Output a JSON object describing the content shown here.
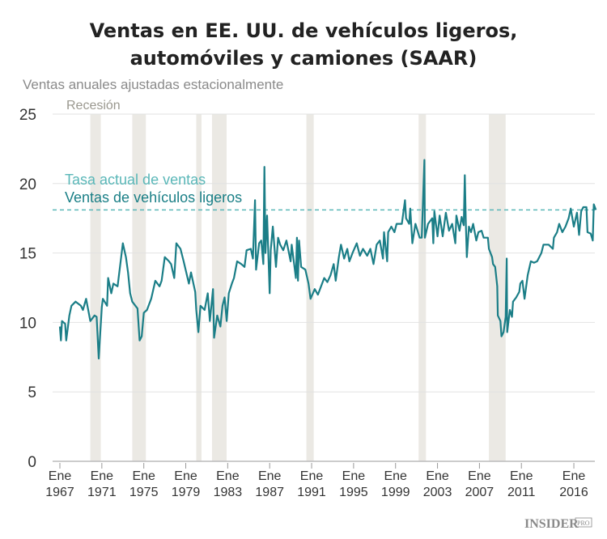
{
  "chart_data": {
    "type": "line",
    "title_line1": "Ventas en EE. UU. de vehículos ligeros,",
    "title_line2": "automóviles y camiones (SAAR)",
    "ylabel": "Ventas anuales ajustadas estacionalmente",
    "recession_label": "Recesión",
    "ylim": [
      0,
      25
    ],
    "xlim": [
      1966.8,
      2018.3
    ],
    "yticks": [
      0,
      5,
      10,
      15,
      20,
      25
    ],
    "xticks": [
      {
        "year": 1967,
        "month": "Ene",
        "label": "1967"
      },
      {
        "year": 1971,
        "month": "Ene",
        "label": "1971"
      },
      {
        "year": 1975,
        "month": "Ene",
        "label": "1975"
      },
      {
        "year": 1979,
        "month": "Ene",
        "label": "1979"
      },
      {
        "year": 1983,
        "month": "Ene",
        "label": "1983"
      },
      {
        "year": 1987,
        "month": "Ene",
        "label": "1987"
      },
      {
        "year": 1991,
        "month": "Ene",
        "label": "1991"
      },
      {
        "year": 1995,
        "month": "Ene",
        "label": "1995"
      },
      {
        "year": 1999,
        "month": "Ene",
        "label": "1999"
      },
      {
        "year": 2003,
        "month": "Ene",
        "label": "2003"
      },
      {
        "year": 2007,
        "month": "Ene",
        "label": "2007"
      },
      {
        "year": 2011,
        "month": "Ene",
        "label": "2011"
      },
      {
        "year": 2016,
        "month": "Ene",
        "label": "2016"
      }
    ],
    "grid": true,
    "recessions": [
      [
        1969.9,
        1970.9
      ],
      [
        1973.9,
        1975.2
      ],
      [
        1980.0,
        1980.5
      ],
      [
        1981.5,
        1982.9
      ],
      [
        1990.5,
        1991.2
      ],
      [
        2001.2,
        2001.9
      ],
      [
        2007.9,
        2009.5
      ]
    ],
    "current_rate": {
      "name": "Tasa actual de ventas",
      "value": 18.1,
      "color": "#5ab7b8"
    },
    "series": [
      {
        "name": "Ventas de vehículos ligeros",
        "color": "#1b7e87",
        "points": [
          [
            1967.0,
            9.7
          ],
          [
            1967.1,
            8.7
          ],
          [
            1967.2,
            10.1
          ],
          [
            1967.5,
            9.9
          ],
          [
            1967.6,
            8.7
          ],
          [
            1967.9,
            10.5
          ],
          [
            1968.1,
            11.2
          ],
          [
            1968.5,
            11.5
          ],
          [
            1969.0,
            11.2
          ],
          [
            1969.2,
            10.9
          ],
          [
            1969.5,
            11.7
          ],
          [
            1969.9,
            10.1
          ],
          [
            1970.3,
            10.5
          ],
          [
            1970.5,
            10.4
          ],
          [
            1970.7,
            7.4
          ],
          [
            1971.0,
            11.1
          ],
          [
            1971.1,
            11.7
          ],
          [
            1971.5,
            11.2
          ],
          [
            1971.6,
            13.2
          ],
          [
            1971.9,
            12.1
          ],
          [
            1972.1,
            12.8
          ],
          [
            1972.5,
            12.6
          ],
          [
            1973.0,
            15.7
          ],
          [
            1973.3,
            14.7
          ],
          [
            1973.5,
            13.6
          ],
          [
            1973.7,
            12.1
          ],
          [
            1973.9,
            11.5
          ],
          [
            1974.2,
            11.2
          ],
          [
            1974.4,
            11.0
          ],
          [
            1974.6,
            8.7
          ],
          [
            1974.8,
            9.0
          ],
          [
            1975.0,
            10.7
          ],
          [
            1975.3,
            10.9
          ],
          [
            1975.7,
            11.7
          ],
          [
            1976.1,
            13.0
          ],
          [
            1976.5,
            12.6
          ],
          [
            1976.7,
            13.0
          ],
          [
            1977.0,
            14.7
          ],
          [
            1977.4,
            14.4
          ],
          [
            1977.6,
            14.2
          ],
          [
            1977.9,
            13.2
          ],
          [
            1978.1,
            15.7
          ],
          [
            1978.5,
            15.3
          ],
          [
            1978.8,
            14.4
          ],
          [
            1979.3,
            12.8
          ],
          [
            1979.5,
            13.6
          ],
          [
            1979.9,
            12.2
          ],
          [
            1980.0,
            10.9
          ],
          [
            1980.2,
            9.3
          ],
          [
            1980.4,
            11.2
          ],
          [
            1980.8,
            10.9
          ],
          [
            1981.1,
            12.1
          ],
          [
            1981.3,
            10.1
          ],
          [
            1981.6,
            12.4
          ],
          [
            1981.7,
            8.9
          ],
          [
            1982.0,
            10.5
          ],
          [
            1982.3,
            9.7
          ],
          [
            1982.5,
            11.2
          ],
          [
            1982.7,
            11.8
          ],
          [
            1982.9,
            10.1
          ],
          [
            1983.1,
            12.1
          ],
          [
            1983.4,
            12.8
          ],
          [
            1983.6,
            13.2
          ],
          [
            1983.9,
            14.4
          ],
          [
            1984.3,
            14.2
          ],
          [
            1984.6,
            14.0
          ],
          [
            1984.8,
            15.2
          ],
          [
            1985.2,
            15.3
          ],
          [
            1985.4,
            14.6
          ],
          [
            1985.6,
            18.8
          ],
          [
            1985.7,
            13.8
          ],
          [
            1986.0,
            15.7
          ],
          [
            1986.2,
            15.9
          ],
          [
            1986.4,
            14.2
          ],
          [
            1986.5,
            21.2
          ],
          [
            1986.6,
            15.0
          ],
          [
            1986.75,
            17.7
          ],
          [
            1987.0,
            12.1
          ],
          [
            1987.1,
            15.2
          ],
          [
            1987.3,
            16.9
          ],
          [
            1987.6,
            14.0
          ],
          [
            1987.8,
            16.1
          ],
          [
            1988.0,
            15.6
          ],
          [
            1988.3,
            15.2
          ],
          [
            1988.6,
            15.9
          ],
          [
            1989.0,
            14.4
          ],
          [
            1989.1,
            15.6
          ],
          [
            1989.5,
            13.2
          ],
          [
            1989.6,
            16.1
          ],
          [
            1989.7,
            13.0
          ],
          [
            1989.8,
            15.9
          ],
          [
            1990.0,
            14.0
          ],
          [
            1990.4,
            13.8
          ],
          [
            1990.7,
            12.8
          ],
          [
            1990.9,
            11.7
          ],
          [
            1991.3,
            12.4
          ],
          [
            1991.6,
            12.0
          ],
          [
            1991.9,
            12.6
          ],
          [
            1992.2,
            13.2
          ],
          [
            1992.5,
            12.9
          ],
          [
            1992.8,
            13.4
          ],
          [
            1993.1,
            14.2
          ],
          [
            1993.3,
            13.0
          ],
          [
            1993.6,
            14.7
          ],
          [
            1993.8,
            15.6
          ],
          [
            1994.1,
            14.6
          ],
          [
            1994.4,
            15.3
          ],
          [
            1994.6,
            14.4
          ],
          [
            1994.9,
            15.0
          ],
          [
            1995.3,
            15.7
          ],
          [
            1995.6,
            14.8
          ],
          [
            1995.9,
            15.3
          ],
          [
            1996.3,
            14.8
          ],
          [
            1996.6,
            15.3
          ],
          [
            1996.9,
            14.2
          ],
          [
            1997.2,
            15.6
          ],
          [
            1997.5,
            15.9
          ],
          [
            1997.8,
            14.6
          ],
          [
            1997.9,
            16.5
          ],
          [
            1998.2,
            14.4
          ],
          [
            1998.3,
            16.5
          ],
          [
            1998.6,
            16.9
          ],
          [
            1998.9,
            16.5
          ],
          [
            1999.1,
            17.1
          ],
          [
            1999.6,
            17.1
          ],
          [
            1999.9,
            18.8
          ],
          [
            2000.0,
            17.5
          ],
          [
            2000.3,
            17.1
          ],
          [
            2000.4,
            18.2
          ],
          [
            2000.6,
            15.7
          ],
          [
            2000.9,
            17.1
          ],
          [
            2001.3,
            16.1
          ],
          [
            2001.5,
            16.1
          ],
          [
            2001.75,
            21.7
          ],
          [
            2001.8,
            16.1
          ],
          [
            2002.1,
            17.1
          ],
          [
            2002.5,
            17.5
          ],
          [
            2002.6,
            15.7
          ],
          [
            2002.7,
            18.0
          ],
          [
            2003.0,
            16.2
          ],
          [
            2003.2,
            17.7
          ],
          [
            2003.5,
            16.2
          ],
          [
            2003.8,
            17.9
          ],
          [
            2004.1,
            16.6
          ],
          [
            2004.4,
            17.1
          ],
          [
            2004.7,
            15.7
          ],
          [
            2004.8,
            17.7
          ],
          [
            2005.1,
            16.6
          ],
          [
            2005.3,
            17.6
          ],
          [
            2005.5,
            17.0
          ],
          [
            2005.6,
            20.6
          ],
          [
            2005.7,
            17.1
          ],
          [
            2005.8,
            14.7
          ],
          [
            2006.0,
            16.9
          ],
          [
            2006.2,
            16.5
          ],
          [
            2006.4,
            17.1
          ],
          [
            2006.7,
            15.9
          ],
          [
            2006.9,
            16.5
          ],
          [
            2007.2,
            16.6
          ],
          [
            2007.4,
            16.1
          ],
          [
            2007.8,
            16.1
          ],
          [
            2007.9,
            15.3
          ],
          [
            2008.2,
            14.7
          ],
          [
            2008.3,
            14.2
          ],
          [
            2008.5,
            14.0
          ],
          [
            2008.7,
            12.6
          ],
          [
            2008.75,
            10.5
          ],
          [
            2009.0,
            10.1
          ],
          [
            2009.1,
            9.0
          ],
          [
            2009.3,
            9.3
          ],
          [
            2009.5,
            10.4
          ],
          [
            2009.6,
            14.6
          ],
          [
            2009.65,
            9.3
          ],
          [
            2009.9,
            10.9
          ],
          [
            2010.1,
            10.4
          ],
          [
            2010.2,
            11.5
          ],
          [
            2010.5,
            11.8
          ],
          [
            2010.8,
            12.2
          ],
          [
            2010.9,
            12.8
          ],
          [
            2011.1,
            13.0
          ],
          [
            2011.3,
            11.7
          ],
          [
            2011.6,
            13.4
          ],
          [
            2011.9,
            14.4
          ],
          [
            2012.2,
            14.3
          ],
          [
            2012.5,
            14.4
          ],
          [
            2012.9,
            15.0
          ],
          [
            2013.1,
            15.6
          ],
          [
            2013.6,
            15.6
          ],
          [
            2014.0,
            15.3
          ],
          [
            2014.1,
            16.1
          ],
          [
            2014.4,
            16.5
          ],
          [
            2014.6,
            17.1
          ],
          [
            2014.9,
            16.5
          ],
          [
            2015.2,
            16.9
          ],
          [
            2015.5,
            17.5
          ],
          [
            2015.7,
            18.2
          ],
          [
            2016.0,
            16.9
          ],
          [
            2016.3,
            17.9
          ],
          [
            2016.5,
            16.3
          ],
          [
            2016.7,
            18.0
          ],
          [
            2016.9,
            18.3
          ],
          [
            2017.2,
            18.3
          ],
          [
            2017.3,
            16.5
          ],
          [
            2017.6,
            16.4
          ],
          [
            2017.8,
            15.9
          ],
          [
            2017.9,
            18.5
          ],
          [
            2018.1,
            18.1
          ]
        ]
      }
    ]
  },
  "branding": {
    "logo": "INSIDER",
    "logo_suffix": "PRO"
  }
}
